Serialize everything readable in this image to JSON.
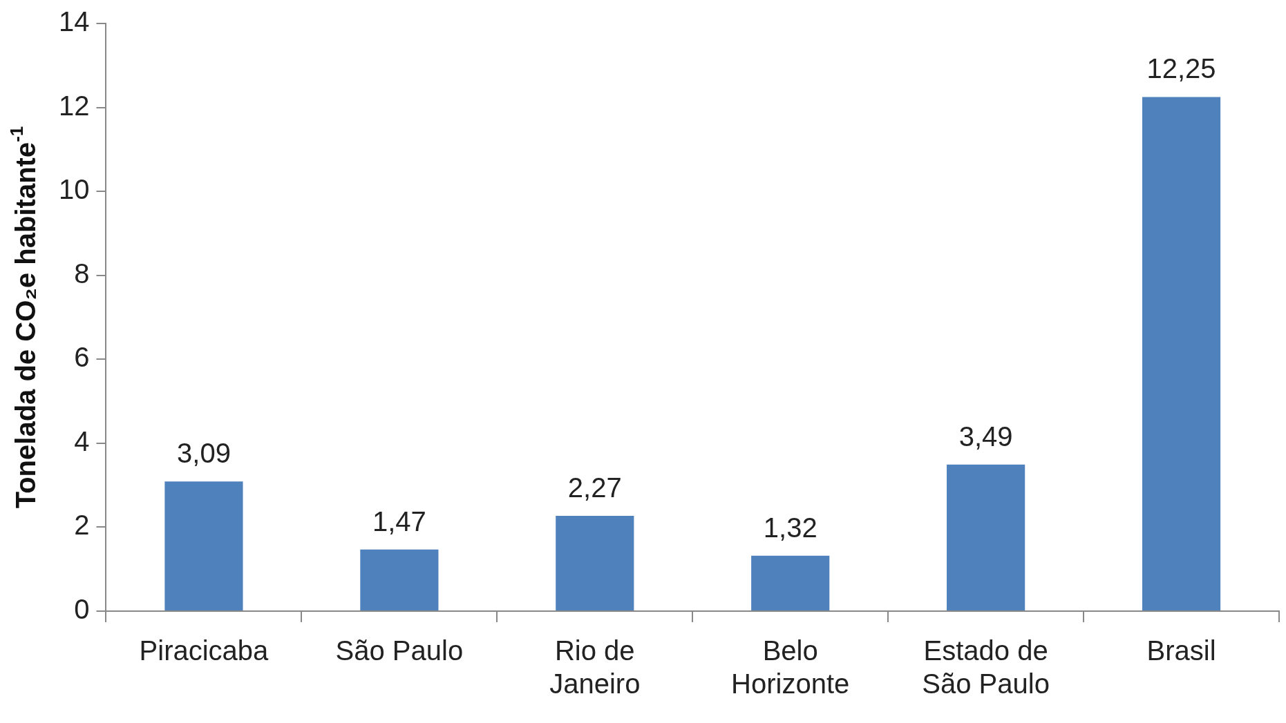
{
  "chart_data": {
    "type": "bar",
    "ylabel": "Tonelada de CO₂e habitante$^{-1}$",
    "categories": [
      "Piracicaba",
      "São Paulo",
      "Rio de Janeiro",
      "Belo Horizonte",
      "Estado de São Paulo",
      "Brasil"
    ],
    "values": [
      3.09,
      1.47,
      2.27,
      1.32,
      3.49,
      12.25
    ],
    "value_labels": [
      "3,09",
      "1,47",
      "2,27",
      "1,32",
      "3,49",
      "12,25"
    ],
    "color": "#4f81bd",
    "ylim": [
      0,
      14
    ],
    "yticks": [
      0,
      2,
      4,
      6,
      8,
      10,
      12,
      14
    ],
    "grid": false,
    "legend": false
  }
}
